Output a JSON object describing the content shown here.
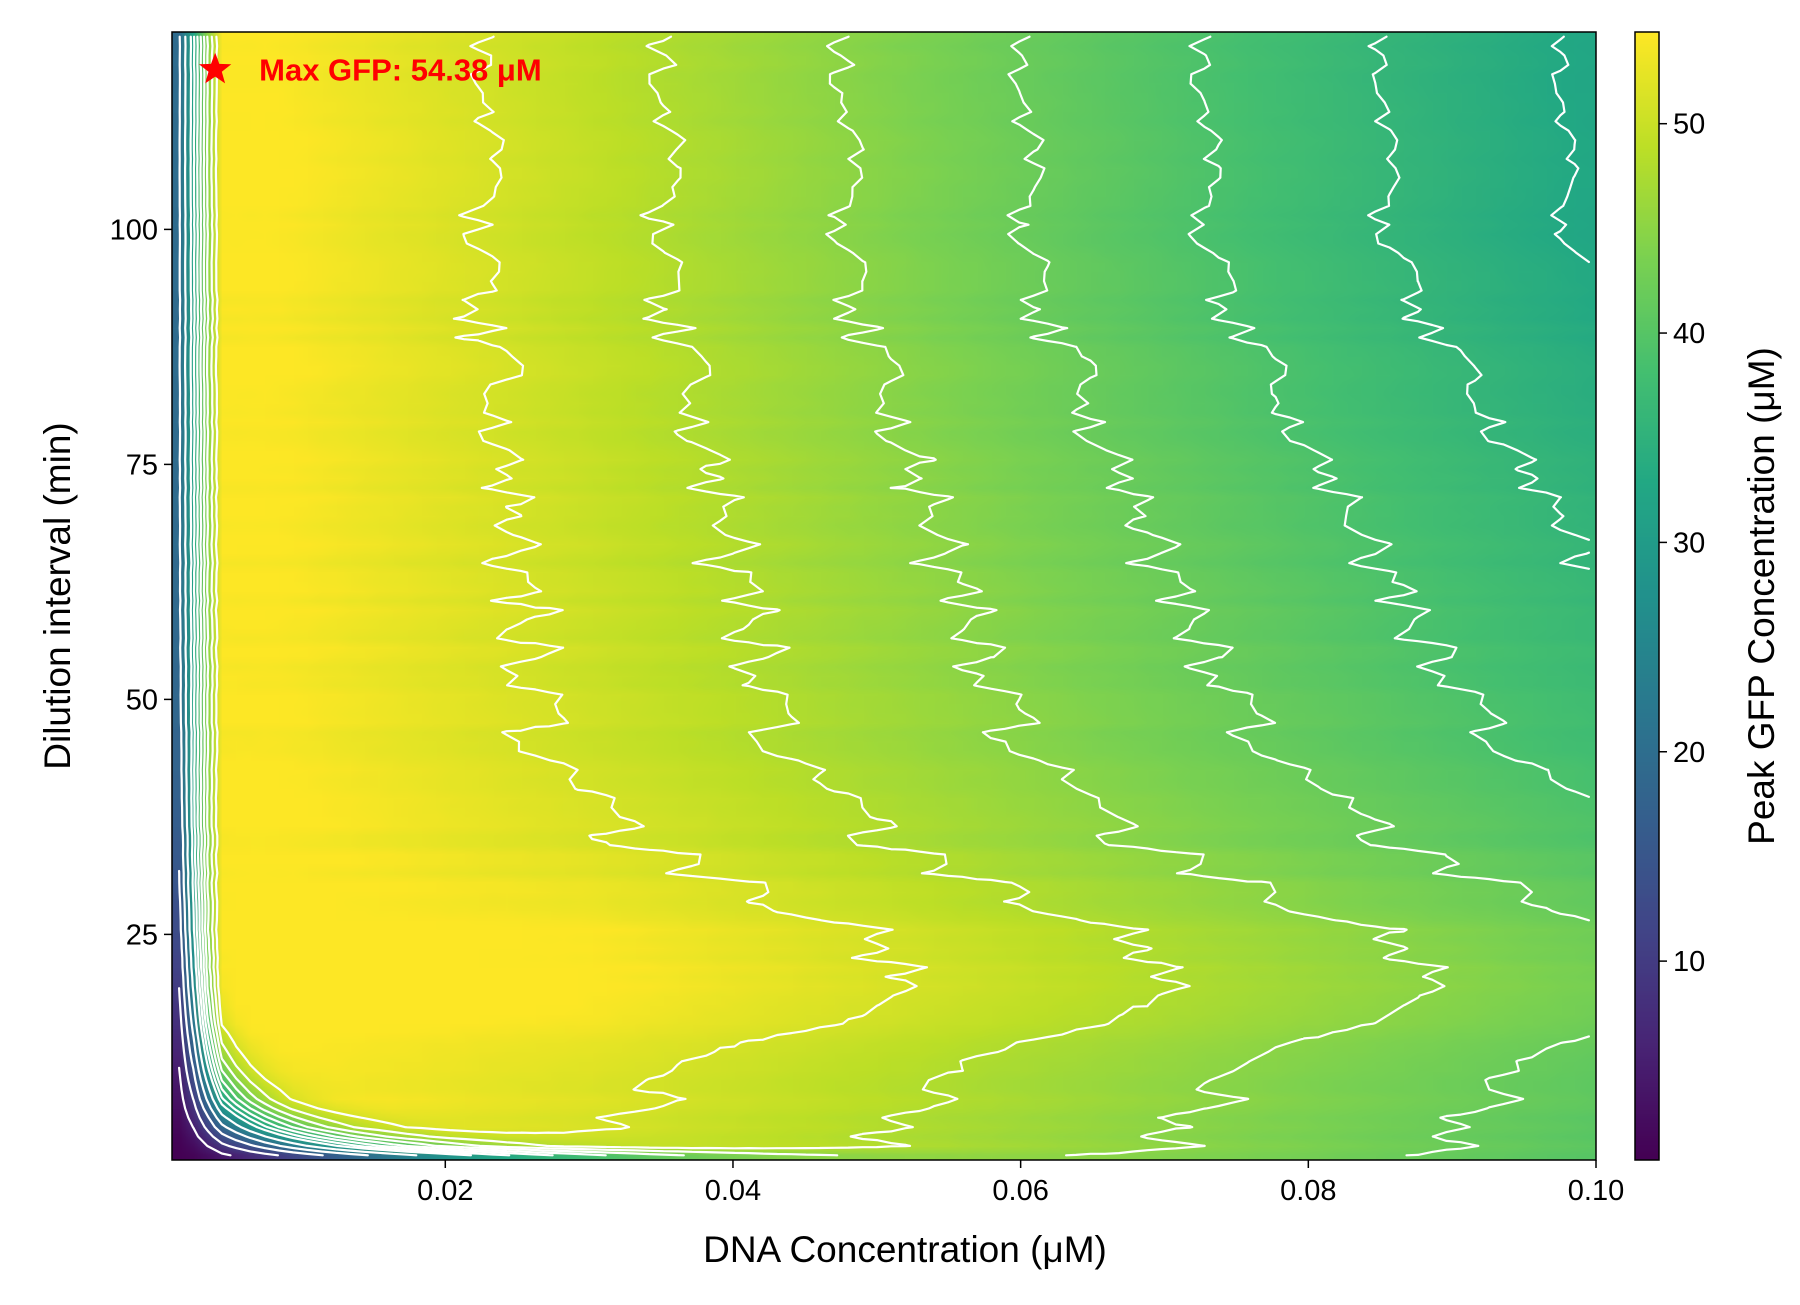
{
  "chart_data": {
    "type": "heatmap",
    "title": "",
    "xlabel": "DNA Concentration (μM)",
    "ylabel": "Dilution interval (min)",
    "colorbar_label": "Peak GFP Concentration (μM)",
    "colormap": "viridis",
    "xlim": [
      0.001,
      0.1
    ],
    "ylim": [
      1,
      121
    ],
    "clim": [
      0.5,
      54.38
    ],
    "x_ticks": [
      0.02,
      0.04,
      0.06,
      0.08,
      0.1
    ],
    "x_tick_labels": [
      "0.02",
      "0.04",
      "0.06",
      "0.08",
      "0.10"
    ],
    "y_ticks": [
      25,
      50,
      75,
      100
    ],
    "y_tick_labels": [
      "25",
      "50",
      "75",
      "100"
    ],
    "colorbar_ticks": [
      10,
      20,
      30,
      40,
      50
    ],
    "colorbar_tick_labels": [
      "10",
      "20",
      "30",
      "40",
      "50"
    ],
    "contour_levels": [
      5,
      10,
      15,
      20,
      25,
      30,
      33,
      36,
      39,
      42,
      45,
      48,
      51
    ],
    "contour_color": "#ffffff",
    "annotation": {
      "text": "Max GFP: 54.38 μM",
      "marker": "star",
      "x": 0.004,
      "y": 117,
      "color": "#ff0000"
    },
    "grid": false
  }
}
